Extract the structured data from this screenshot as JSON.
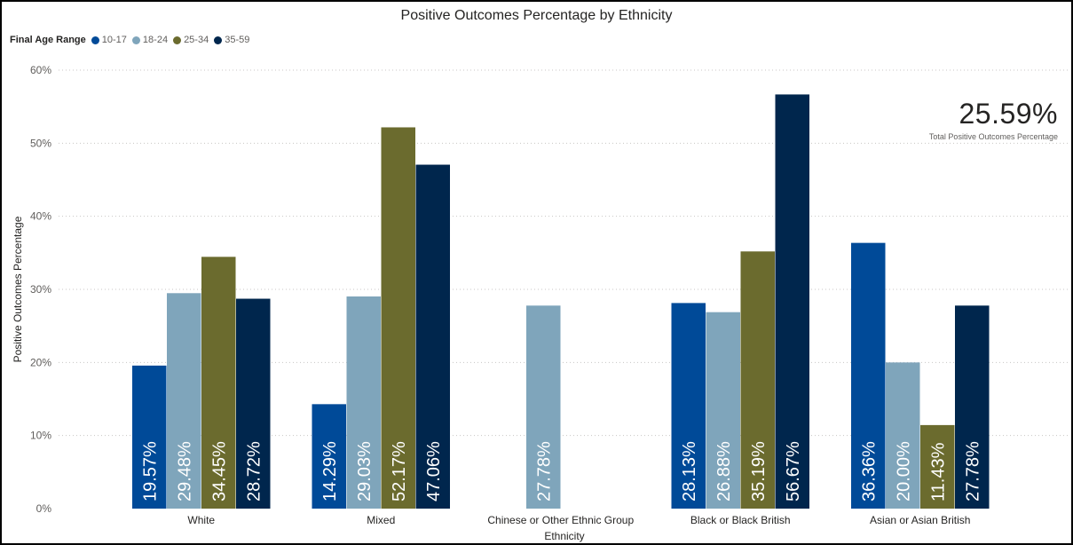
{
  "chart_data": {
    "type": "bar",
    "title": "Positive Outcomes Percentage by Ethnicity",
    "xlabel": "Ethnicity",
    "ylabel": "Positive Outcomes Percentage",
    "ylim": [
      0,
      60
    ],
    "yticks": [
      "0%",
      "10%",
      "20%",
      "30%",
      "40%",
      "50%",
      "60%"
    ],
    "ytick_values": [
      0,
      10,
      20,
      30,
      40,
      50,
      60
    ],
    "grid": true,
    "legend": {
      "title": "Final Age Range",
      "position": "top-left"
    },
    "categories": [
      "White",
      "Mixed",
      "Chinese or Other Ethnic Group",
      "Black or Black British",
      "Asian or Asian British"
    ],
    "series": [
      {
        "name": "10-17",
        "color": "#004a98",
        "values": [
          19.57,
          14.29,
          null,
          28.13,
          36.36
        ],
        "labels": [
          "19.57%",
          "14.29%",
          "",
          "28.13%",
          "36.36%"
        ]
      },
      {
        "name": "18-24",
        "color": "#7fa5bb",
        "values": [
          29.48,
          29.03,
          27.78,
          26.88,
          20.0
        ],
        "labels": [
          "29.48%",
          "29.03%",
          "27.78%",
          "26.88%",
          "20.00%"
        ]
      },
      {
        "name": "25-34",
        "color": "#6b6b2e",
        "values": [
          34.45,
          52.17,
          null,
          35.19,
          11.43
        ],
        "labels": [
          "34.45%",
          "52.17%",
          "",
          "35.19%",
          "11.43%"
        ]
      },
      {
        "name": "35-59",
        "color": "#00264d",
        "values": [
          28.72,
          47.06,
          null,
          56.67,
          27.78
        ],
        "labels": [
          "28.72%",
          "47.06%",
          "",
          "56.67%",
          "27.78%"
        ]
      }
    ]
  },
  "kpi": {
    "value": "25.59%",
    "label": "Total Positive Outcomes Percentage"
  }
}
